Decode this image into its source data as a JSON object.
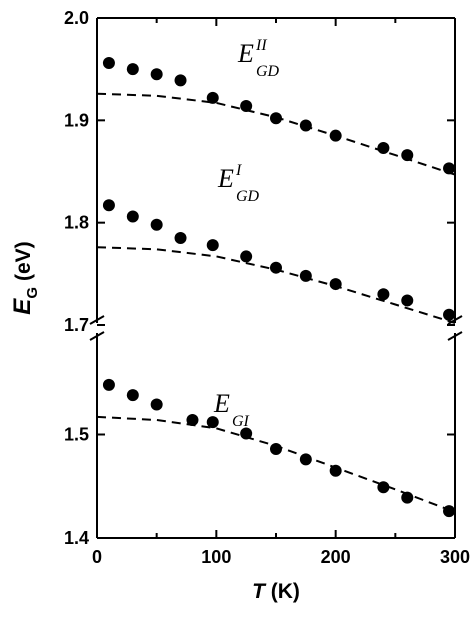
{
  "chart_data": [
    {
      "type": "scatter",
      "xlim": [
        0,
        300
      ],
      "ylim": [
        1.7,
        2.0
      ],
      "yticks": [
        1.7,
        1.8,
        1.9,
        {
          "value": 2,
          "label": "2.0"
        }
      ],
      "color": "#000000",
      "annotations": [
        {
          "text": "E",
          "sup": "II",
          "sub": "GD"
        },
        {
          "text": "E",
          "sup": "I",
          "sub": "GD"
        }
      ],
      "series": [
        {
          "style": "points",
          "x": [
            10,
            30,
            50,
            70,
            97,
            125,
            150,
            175,
            200,
            240,
            260,
            295
          ],
          "values": [
            1.956,
            1.95,
            1.945,
            1.939,
            1.922,
            1.914,
            1.902,
            1.895,
            1.885,
            1.873,
            1.866,
            1.853
          ]
        },
        {
          "style": "dashed",
          "x": [
            0,
            50,
            100,
            150,
            200,
            250,
            300
          ],
          "values": [
            1.926,
            1.924,
            1.917,
            1.903,
            1.885,
            1.866,
            1.847
          ]
        },
        {
          "style": "points",
          "x": [
            10,
            30,
            50,
            70,
            97,
            125,
            150,
            175,
            200,
            240,
            260,
            295
          ],
          "values": [
            1.817,
            1.806,
            1.798,
            1.785,
            1.778,
            1.767,
            1.756,
            1.748,
            1.74,
            1.73,
            1.724,
            1.71
          ]
        },
        {
          "style": "dashed",
          "x": [
            0,
            50,
            100,
            150,
            200,
            250,
            300
          ],
          "values": [
            1.776,
            1.774,
            1.767,
            1.754,
            1.738,
            1.72,
            1.702
          ]
        }
      ]
    },
    {
      "type": "scatter",
      "xlim": [
        0,
        300
      ],
      "ylim": [
        1.4,
        1.6
      ],
      "xticks": [
        0,
        100,
        200,
        300
      ],
      "xminorticks": [
        50,
        150,
        250
      ],
      "yticks": [
        1.4,
        1.5
      ],
      "color": "#000000",
      "x_label": {
        "var": "T",
        "unit": "(K)"
      },
      "y_label": {
        "var": "E",
        "sub": "G",
        "unit": "(eV)"
      },
      "annotations": [
        {
          "text": "E",
          "sub": "GI"
        }
      ],
      "series": [
        {
          "style": "points",
          "x": [
            10,
            30,
            50,
            80,
            97,
            125,
            150,
            175,
            200,
            240,
            260,
            295
          ],
          "values": [
            1.548,
            1.538,
            1.529,
            1.514,
            1.512,
            1.501,
            1.486,
            1.476,
            1.465,
            1.449,
            1.439,
            1.426
          ]
        },
        {
          "style": "dashed",
          "x": [
            0,
            50,
            100,
            150,
            200,
            250,
            300
          ],
          "values": [
            1.517,
            1.514,
            1.506,
            1.489,
            1.468,
            1.447,
            1.425
          ]
        }
      ]
    }
  ]
}
